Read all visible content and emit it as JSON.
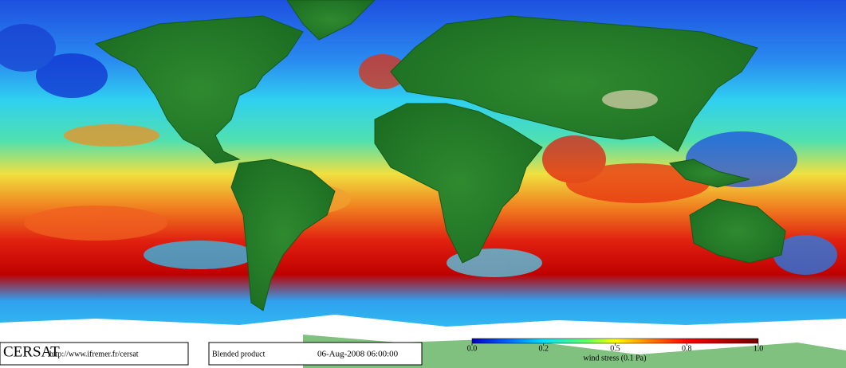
{
  "footer": {
    "logo": "CERSAT",
    "url": "http://www.ifremer.fr/cersat",
    "product": "Blended product",
    "date": "06-Aug-2008 06:00:00"
  },
  "colorbar": {
    "label": "wind stress (0.1 Pa)",
    "ticks": [
      {
        "value": 0,
        "label": "0.0"
      },
      0.2,
      0.5,
      0.8,
      {
        "value": 1,
        "label": "1.0"
      }
    ]
  }
}
